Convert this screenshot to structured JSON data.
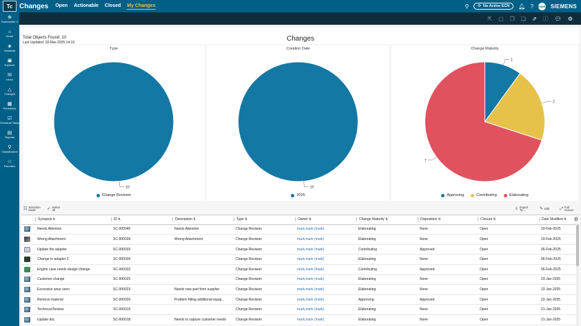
{
  "app": {
    "logo_text": "Tc",
    "title": "Changes"
  },
  "nav": [
    {
      "label": "Open",
      "active": false
    },
    {
      "label": "Actionable",
      "active": false
    },
    {
      "label": "Closed",
      "active": false
    },
    {
      "label": "My Changes",
      "active": true
    }
  ],
  "header_right": {
    "ecn_label": "No Active ECN",
    "avatar_initials": "mark",
    "brand": "SIEMENS"
  },
  "sidebar": [
    {
      "icon": "teamcenter-x-icon",
      "glyph": "⊕",
      "label": "Teamcenter X"
    },
    {
      "icon": "home-icon",
      "glyph": "⌂",
      "label": "Home"
    },
    {
      "icon": "assistant-icon",
      "glyph": "◈",
      "label": "Assistant"
    },
    {
      "icon": "explorer-icon",
      "glyph": "▣",
      "label": "Explorer"
    },
    {
      "icon": "inbox-icon",
      "glyph": "✉",
      "label": "Inbox"
    },
    {
      "icon": "changes-icon",
      "glyph": "△",
      "label": "Changes"
    },
    {
      "icon": "schedules-icon",
      "glyph": "▦",
      "label": "Schedules"
    },
    {
      "icon": "schedule-tasks-icon",
      "glyph": "☑",
      "label": "Schedule Tasks"
    },
    {
      "icon": "reports-icon",
      "glyph": "▤",
      "label": "Reports"
    },
    {
      "icon": "classification-icon",
      "glyph": "⚲",
      "label": "Classification"
    },
    {
      "icon": "favorites-icon",
      "glyph": "☆",
      "label": "Favorites"
    }
  ],
  "summary": {
    "total_objects": "Total Objects Found: 10",
    "last_updated": "Last Updated: 18-Mar-2025 14:19",
    "page_title": "Changes"
  },
  "colors": {
    "brand_blue": "#005f87",
    "teal": "#1378a3",
    "yellow": "#e6c24a",
    "red": "#e0525e",
    "link": "#2a6db5"
  },
  "chart_data": [
    {
      "type": "pie",
      "title": "Type",
      "categories": [
        "Change Revision"
      ],
      "values": [
        10
      ],
      "colors": [
        "#1378a3"
      ],
      "legend_position": "bottom"
    },
    {
      "type": "pie",
      "title": "Creation Date",
      "categories": [
        "2025"
      ],
      "values": [
        10
      ],
      "colors": [
        "#1378a3"
      ],
      "legend_position": "bottom"
    },
    {
      "type": "pie",
      "title": "Change Maturity",
      "categories": [
        "Approving",
        "Contributing",
        "Elaborating"
      ],
      "values": [
        1,
        2,
        7
      ],
      "colors": [
        "#1378a3",
        "#e6c24a",
        "#e0525e"
      ],
      "legend_position": "bottom"
    }
  ],
  "table_toolbar": {
    "selection_mode": "Selection Mode",
    "select_all": "Select All",
    "export_to": "Export To...",
    "edit": "Edit",
    "full_screen": "Full Screen"
  },
  "table": {
    "columns": [
      "Synopsis",
      "ID",
      "Description",
      "Type",
      "Owner",
      "Change Maturity",
      "Disposition",
      "Closure",
      "Date Modified"
    ],
    "rows": [
      {
        "thumb": "t0",
        "synopsis": "Needs Attention",
        "id": "SC-000040",
        "description": "Needs Attention",
        "type": "Change Revision",
        "owner": "mark,mark (mark)",
        "maturity": "Elaborating",
        "disposition": "None",
        "closure": "Open",
        "date": "19-Feb-2025"
      },
      {
        "thumb": "t1",
        "synopsis": "Wrong Attachment",
        "id": "SC-000039",
        "description": "Wrong Attachment",
        "type": "Change Revision",
        "owner": "mark,mark (mark)",
        "maturity": "Elaborating",
        "disposition": "None",
        "closure": "Open",
        "date": "19-Feb-2025"
      },
      {
        "thumb": "t2",
        "synopsis": "Update the adapter",
        "id": "SC-000033",
        "description": "",
        "type": "Change Revision",
        "owner": "mark,mark (mark)",
        "maturity": "Contributing",
        "disposition": "Approved",
        "closure": "Open",
        "date": "06-Feb-2025"
      },
      {
        "thumb": "t3",
        "synopsis": "Change to adapter 2",
        "id": "SC-000034",
        "description": "",
        "type": "Change Revision",
        "owner": "mark,mark (mark)",
        "maturity": "Elaborating",
        "disposition": "None",
        "closure": "Open",
        "date": "06-Feb-2025"
      },
      {
        "thumb": "t4",
        "synopsis": "Engine case needs design change",
        "id": "SC-000032",
        "description": "",
        "type": "Change Revision",
        "owner": "mark,mark (mark)",
        "maturity": "Contributing",
        "disposition": "Approved",
        "closure": "Open",
        "date": "06-Feb-2025"
      },
      {
        "thumb": "t0",
        "synopsis": "Customer change",
        "id": "SC-000025",
        "description": "",
        "type": "Change Revision",
        "owner": "mark,mark (mark)",
        "maturity": "Elaborating",
        "disposition": "None",
        "closure": "Open",
        "date": "23-Jan-2025"
      },
      {
        "thumb": "t0",
        "synopsis": "Excessive wear seen",
        "id": "SC-000023",
        "description": "Needs new part from supplier",
        "type": "Change Revision",
        "owner": "mark,mark (mark)",
        "maturity": "Elaborating",
        "disposition": "None",
        "closure": "Open",
        "date": "22-Jan-2025"
      },
      {
        "thumb": "t0",
        "synopsis": "Remove material",
        "id": "SC-000020",
        "description": "Problem fitting additional equip...",
        "type": "Change Revision",
        "owner": "mark,mark (mark)",
        "maturity": "Approving",
        "disposition": "Approved",
        "closure": "Open",
        "date": "22-Jan-2025"
      },
      {
        "thumb": "t0",
        "synopsis": "Technical Review",
        "id": "SC-000019",
        "description": "",
        "type": "Change Revision",
        "owner": "mark,mark (mark)",
        "maturity": "Elaborating",
        "disposition": "None",
        "closure": "Open",
        "date": "21-Jan-2025"
      },
      {
        "thumb": "t0",
        "synopsis": "Update doc",
        "id": "SC-000018",
        "description": "Needs to capture customer needs",
        "type": "Change Revision",
        "owner": "mark,mark (mark)",
        "maturity": "Elaborating",
        "disposition": "None",
        "closure": "Open",
        "date": "21-Jan-2025"
      }
    ]
  }
}
